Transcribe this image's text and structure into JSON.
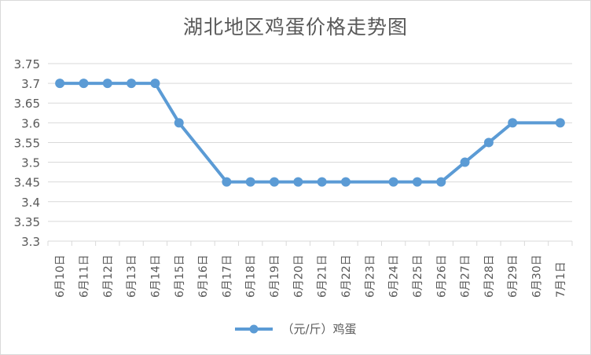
{
  "chart_data": {
    "type": "line",
    "title": "湖北地区鸡蛋价格走势图",
    "xlabel": "",
    "ylabel": "",
    "categories": [
      "6月10日",
      "6月11日",
      "6月12日",
      "6月13日",
      "6月14日",
      "6月15日",
      "6月16日",
      "6月17日",
      "6月18日",
      "6月19日",
      "6月20日",
      "6月21日",
      "6月22日",
      "6月23日",
      "6月24日",
      "6月25日",
      "6月26日",
      "6月27日",
      "6月28日",
      "6月29日",
      "6月30日",
      "7月1日"
    ],
    "series": [
      {
        "name": "（元/斤）鸡蛋",
        "values": [
          3.7,
          3.7,
          3.7,
          3.7,
          3.7,
          3.6,
          null,
          3.45,
          3.45,
          3.45,
          3.45,
          3.45,
          3.45,
          null,
          3.45,
          3.45,
          3.45,
          3.5,
          3.55,
          3.6,
          null,
          3.6
        ]
      }
    ],
    "ylim": [
      3.3,
      3.75
    ],
    "yticks": [
      "3.3",
      "3.35",
      "3.4",
      "3.45",
      "3.5",
      "3.55",
      "3.6",
      "3.65",
      "3.7",
      "3.75"
    ],
    "grid": true,
    "legend_position": "bottom",
    "line_color": "#5B9BD5",
    "gap_handling": "connect"
  }
}
